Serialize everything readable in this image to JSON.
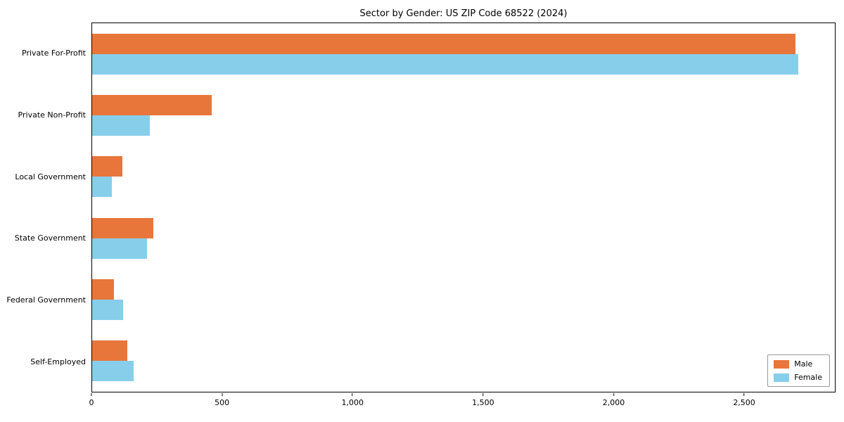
{
  "title": "Sector by Gender: US ZIP Code 68522 (2024)",
  "chart_data": {
    "type": "bar",
    "orientation": "horizontal",
    "title": "Sector by Gender: US ZIP Code 68522 (2024)",
    "categories": [
      "Private For-Profit",
      "Private Non-Profit",
      "Local Government",
      "State Government",
      "Federal Government",
      "Self-Employed"
    ],
    "series": [
      {
        "name": "Male",
        "color": "#E8763B",
        "values": [
          2700,
          460,
          115,
          235,
          85,
          135
        ]
      },
      {
        "name": "Female",
        "color": "#87CEEB",
        "values": [
          2710,
          220,
          75,
          210,
          120,
          160
        ]
      }
    ],
    "xlabel": "",
    "ylabel": "",
    "xlim": [
      0,
      2850
    ],
    "xticks": [
      0,
      500,
      1000,
      1500,
      2000,
      2500
    ],
    "xtick_labels": [
      "0",
      "500",
      "1,000",
      "1,500",
      "2,000",
      "2,500"
    ],
    "grid": false,
    "legend_position": "lower right"
  },
  "legend": {
    "entries": [
      {
        "label": "Male",
        "color": "#E8763B"
      },
      {
        "label": "Female",
        "color": "#87CEEB"
      }
    ]
  }
}
